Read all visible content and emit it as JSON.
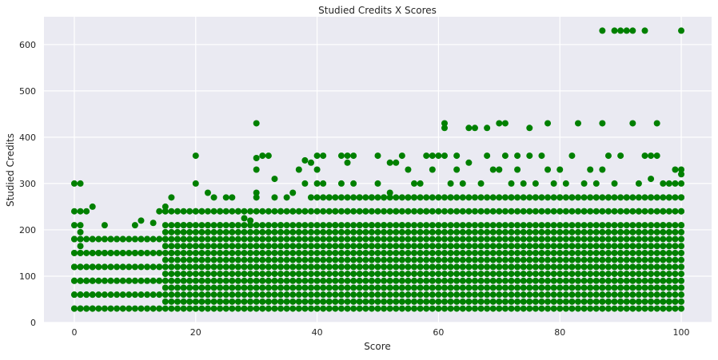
{
  "chart_data": {
    "type": "scatter",
    "title": "Studied Credits X Scores",
    "xlabel": "Score",
    "ylabel": "Studied Credits",
    "xlim": [
      -5,
      105
    ],
    "ylim": [
      0,
      660
    ],
    "xticks": [
      0,
      20,
      40,
      60,
      80,
      100
    ],
    "yticks": [
      0,
      100,
      200,
      300,
      400,
      500,
      600
    ],
    "grid": true,
    "legend": "none",
    "colors": {
      "points": "#008000",
      "plot_bg": "#eaeaf2",
      "grid": "#ffffff"
    },
    "series": [
      {
        "points": [
          [
            0,
            300
          ],
          [
            1,
            300
          ],
          [
            0,
            240
          ],
          [
            1,
            240
          ],
          [
            0,
            210
          ],
          [
            1,
            210
          ],
          [
            0,
            180
          ],
          [
            1,
            180
          ],
          [
            0,
            150
          ],
          [
            1,
            150
          ],
          [
            0,
            120
          ],
          [
            1,
            120
          ],
          [
            0,
            90
          ],
          [
            1,
            90
          ],
          [
            0,
            60
          ],
          [
            1,
            60
          ],
          [
            0,
            30
          ],
          [
            1,
            30
          ],
          [
            1,
            165
          ],
          [
            1,
            195
          ],
          [
            3,
            250
          ],
          [
            2,
            240
          ],
          [
            3,
            180
          ],
          [
            3,
            150
          ],
          [
            4,
            150
          ],
          [
            3,
            120
          ],
          [
            3,
            90
          ],
          [
            3,
            60
          ],
          [
            3,
            30
          ],
          [
            2,
            90
          ],
          [
            2,
            60
          ],
          [
            2,
            30
          ],
          [
            5,
            210
          ],
          [
            5,
            180
          ],
          [
            6,
            180
          ],
          [
            7,
            180
          ],
          [
            8,
            180
          ],
          [
            5,
            150
          ],
          [
            6,
            150
          ],
          [
            8,
            150
          ],
          [
            10,
            210
          ],
          [
            11,
            220
          ],
          [
            10,
            180
          ],
          [
            11,
            180
          ],
          [
            12,
            180
          ],
          [
            10,
            150
          ],
          [
            11,
            150
          ],
          [
            13,
            215
          ],
          [
            14,
            240
          ],
          [
            15,
            250
          ],
          [
            15,
            240
          ],
          [
            16,
            270
          ],
          [
            15,
            180
          ],
          [
            17,
            180
          ],
          [
            18,
            180
          ],
          [
            16,
            150
          ],
          [
            19,
            210
          ],
          [
            18,
            210
          ],
          [
            17,
            210
          ],
          [
            20,
            360
          ],
          [
            20,
            300
          ],
          [
            20,
            240
          ],
          [
            21,
            240
          ],
          [
            22,
            280
          ],
          [
            23,
            270
          ],
          [
            24,
            240
          ],
          [
            25,
            270
          ],
          [
            26,
            270
          ],
          [
            27,
            240
          ],
          [
            22,
            210
          ],
          [
            24,
            210
          ],
          [
            26,
            210
          ],
          [
            28,
            225
          ],
          [
            29,
            220
          ],
          [
            30,
            430
          ],
          [
            30,
            355
          ],
          [
            31,
            360
          ],
          [
            32,
            360
          ],
          [
            30,
            330
          ],
          [
            30,
            280
          ],
          [
            30,
            270
          ],
          [
            33,
            310
          ],
          [
            34,
            240
          ],
          [
            35,
            270
          ],
          [
            36,
            280
          ],
          [
            37,
            330
          ],
          [
            38,
            350
          ],
          [
            38,
            300
          ],
          [
            39,
            345
          ],
          [
            39,
            270
          ],
          [
            38,
            240
          ],
          [
            36,
            240
          ],
          [
            33,
            270
          ],
          [
            34,
            210
          ],
          [
            40,
            360
          ],
          [
            41,
            360
          ],
          [
            40,
            330
          ],
          [
            40,
            300
          ],
          [
            41,
            300
          ],
          [
            42,
            270
          ],
          [
            43,
            240
          ],
          [
            44,
            360
          ],
          [
            45,
            360
          ],
          [
            45,
            345
          ],
          [
            46,
            360
          ],
          [
            44,
            300
          ],
          [
            46,
            300
          ],
          [
            47,
            270
          ],
          [
            48,
            240
          ],
          [
            49,
            270
          ],
          [
            43,
            210
          ],
          [
            47,
            210
          ],
          [
            45,
            240
          ],
          [
            49,
            210
          ],
          [
            50,
            360
          ],
          [
            50,
            300
          ],
          [
            51,
            270
          ],
          [
            52,
            280
          ],
          [
            52,
            345
          ],
          [
            53,
            345
          ],
          [
            54,
            360
          ],
          [
            55,
            330
          ],
          [
            56,
            300
          ],
          [
            57,
            300
          ],
          [
            58,
            360
          ],
          [
            59,
            360
          ],
          [
            59,
            330
          ],
          [
            56,
            270
          ],
          [
            58,
            240
          ],
          [
            55,
            270
          ],
          [
            53,
            240
          ],
          [
            57,
            240
          ],
          [
            54,
            210
          ],
          [
            51,
            210
          ],
          [
            60,
            360
          ],
          [
            61,
            430
          ],
          [
            61,
            420
          ],
          [
            61,
            360
          ],
          [
            62,
            300
          ],
          [
            63,
            360
          ],
          [
            63,
            330
          ],
          [
            64,
            300
          ],
          [
            65,
            345
          ],
          [
            65,
            420
          ],
          [
            66,
            420
          ],
          [
            67,
            300
          ],
          [
            68,
            420
          ],
          [
            68,
            360
          ],
          [
            69,
            330
          ],
          [
            70,
            430
          ],
          [
            70,
            330
          ],
          [
            71,
            430
          ],
          [
            71,
            360
          ],
          [
            62,
            270
          ],
          [
            72,
            300
          ],
          [
            73,
            360
          ],
          [
            73,
            330
          ],
          [
            74,
            300
          ],
          [
            75,
            420
          ],
          [
            75,
            360
          ],
          [
            76,
            300
          ],
          [
            77,
            360
          ],
          [
            78,
            430
          ],
          [
            78,
            330
          ],
          [
            79,
            300
          ],
          [
            80,
            330
          ],
          [
            81,
            300
          ],
          [
            82,
            360
          ],
          [
            83,
            430
          ],
          [
            84,
            300
          ],
          [
            85,
            330
          ],
          [
            86,
            300
          ],
          [
            72,
            270
          ],
          [
            76,
            270
          ],
          [
            87,
            630
          ],
          [
            87,
            430
          ],
          [
            87,
            330
          ],
          [
            88,
            360
          ],
          [
            89,
            630
          ],
          [
            90,
            630
          ],
          [
            90,
            360
          ],
          [
            91,
            630
          ],
          [
            92,
            630
          ],
          [
            92,
            430
          ],
          [
            93,
            300
          ],
          [
            94,
            630
          ],
          [
            94,
            360
          ],
          [
            95,
            310
          ],
          [
            95,
            360
          ],
          [
            96,
            360
          ],
          [
            96,
            430
          ],
          [
            97,
            300
          ],
          [
            98,
            300
          ],
          [
            99,
            330
          ],
          [
            100,
            630
          ],
          [
            100,
            330
          ],
          [
            100,
            320
          ],
          [
            100,
            300
          ],
          [
            100,
            270
          ],
          [
            100,
            240
          ],
          [
            100,
            210
          ],
          [
            99,
            300
          ],
          [
            98,
            270
          ],
          [
            97,
            240
          ],
          [
            88,
            270
          ],
          [
            89,
            300
          ],
          [
            91,
            270
          ],
          [
            93,
            240
          ],
          [
            95,
            270
          ],
          [
            97,
            210
          ],
          [
            86,
            270
          ],
          [
            84,
            240
          ],
          [
            82,
            270
          ],
          [
            80,
            270
          ]
        ]
      }
    ]
  }
}
